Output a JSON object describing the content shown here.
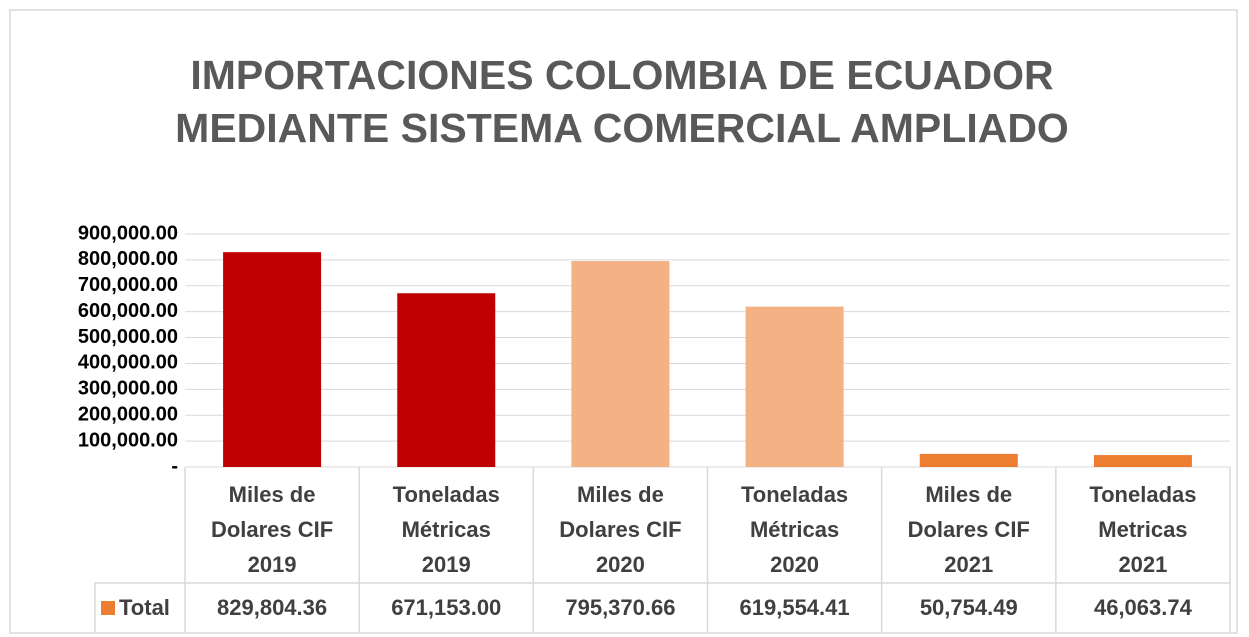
{
  "chart_data": {
    "type": "bar",
    "title": [
      "IMPORTACIONES COLOMBIA DE ECUADOR",
      "MEDIANTE SISTEMA COMERCIAL AMPLIADO"
    ],
    "categories": [
      [
        "Miles de",
        "Dolares CIF",
        "2019"
      ],
      [
        "Toneladas",
        "Métricas",
        "2019"
      ],
      [
        "Miles de",
        "Dolares CIF",
        "2020"
      ],
      [
        "Toneladas",
        "Métricas",
        "2020"
      ],
      [
        "Miles de",
        "Dolares CIF",
        "2021"
      ],
      [
        "Toneladas",
        "Metricas",
        "2021"
      ]
    ],
    "series": [
      {
        "name": "Total",
        "color": "#ed7d31",
        "values": [
          829804.36,
          671153.0,
          795370.66,
          619554.41,
          50754.49,
          46063.74
        ],
        "value_labels": [
          "829,804.36",
          "671,153.00",
          "795,370.66",
          "619,554.41",
          "50,754.49",
          "46,063.74"
        ]
      }
    ],
    "bar_colors": [
      "#c00000",
      "#c00000",
      "#f4b183",
      "#f4b183",
      "#ed7d31",
      "#ed7d31"
    ],
    "ylim": [
      0,
      900000
    ],
    "yticks": [
      {
        "value": 0,
        "label": "-"
      },
      {
        "value": 100000,
        "label": "100,000.00"
      },
      {
        "value": 200000,
        "label": "200,000.00"
      },
      {
        "value": 300000,
        "label": "300,000.00"
      },
      {
        "value": 400000,
        "label": "400,000.00"
      },
      {
        "value": 500000,
        "label": "500,000.00"
      },
      {
        "value": 600000,
        "label": "600,000.00"
      },
      {
        "value": 700000,
        "label": "700,000.00"
      },
      {
        "value": 800000,
        "label": "800,000.00"
      },
      {
        "value": 900000,
        "label": "900,000.00"
      }
    ],
    "grid": true
  }
}
